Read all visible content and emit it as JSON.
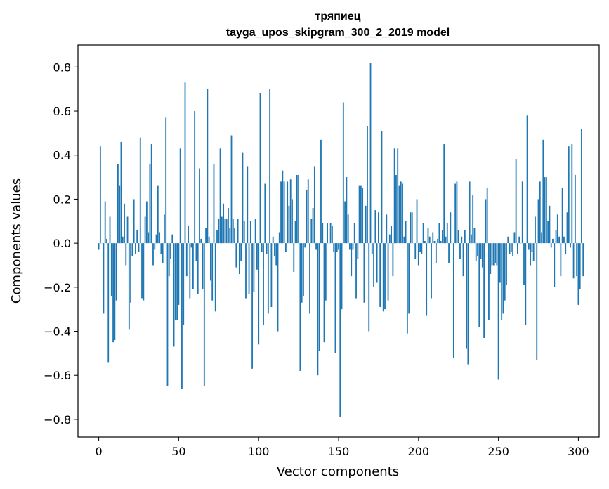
{
  "chart_data": {
    "type": "bar",
    "title": "тряпиец",
    "subtitle": "tayga_upos_skipgram_300_2_2019 model",
    "xlabel": "Vector components",
    "ylabel": "Components values",
    "xlim": [
      -13,
      313
    ],
    "ylim": [
      -0.88,
      0.9
    ],
    "xticks": [
      0,
      50,
      100,
      150,
      200,
      250,
      300
    ],
    "yticks": [
      -0.8,
      -0.6,
      -0.4,
      -0.2,
      0.0,
      0.2,
      0.4,
      0.6,
      0.8
    ],
    "ytick_labels": [
      "−0.8",
      "−0.6",
      "−0.4",
      "−0.2",
      "0.0",
      "0.2",
      "0.4",
      "0.6",
      "0.8"
    ],
    "bar_color": "#1f77b4",
    "grid": false,
    "legend": "none",
    "values": [
      -0.03,
      0.44,
      0.0,
      -0.32,
      0.19,
      0.02,
      -0.54,
      0.12,
      -0.24,
      -0.45,
      -0.44,
      -0.26,
      0.36,
      0.26,
      0.46,
      0.03,
      0.18,
      -0.1,
      0.12,
      -0.39,
      -0.27,
      -0.06,
      0.2,
      -0.05,
      0.06,
      -0.04,
      0.48,
      -0.25,
      -0.26,
      0.12,
      0.19,
      0.05,
      0.36,
      0.45,
      -0.1,
      -0.03,
      0.04,
      0.26,
      0.05,
      -0.05,
      -0.09,
      0.13,
      0.57,
      -0.65,
      -0.15,
      -0.07,
      0.04,
      -0.47,
      -0.35,
      -0.35,
      -0.28,
      0.43,
      -0.66,
      -0.37,
      0.73,
      -0.15,
      0.08,
      -0.25,
      -0.02,
      -0.21,
      0.6,
      -0.08,
      -0.23,
      0.34,
      0.02,
      -0.21,
      -0.65,
      0.07,
      0.7,
      0.03,
      -0.17,
      -0.26,
      0.36,
      -0.31,
      0.06,
      0.11,
      0.43,
      0.12,
      0.18,
      0.11,
      0.11,
      0.16,
      0.07,
      0.49,
      0.11,
      0.07,
      -0.11,
      0.11,
      -0.14,
      -0.08,
      0.41,
      0.1,
      -0.25,
      0.35,
      -0.23,
      0.1,
      -0.57,
      -0.22,
      0.11,
      -0.12,
      -0.46,
      0.68,
      -0.04,
      -0.37,
      0.27,
      -0.05,
      -0.32,
      0.7,
      -0.29,
      0.03,
      -0.06,
      -0.1,
      -0.4,
      0.05,
      0.28,
      0.33,
      0.28,
      -0.04,
      0.28,
      0.17,
      0.29,
      0.2,
      -0.13,
      0.1,
      0.31,
      0.31,
      -0.58,
      -0.27,
      -0.24,
      -0.02,
      0.24,
      0.29,
      -0.32,
      0.11,
      0.16,
      0.35,
      -0.03,
      -0.6,
      -0.49,
      0.47,
      0.09,
      -0.45,
      -0.26,
      0.09,
      0.0,
      0.09,
      0.08,
      -0.04,
      -0.5,
      -0.04,
      -0.03,
      -0.79,
      -0.3,
      0.64,
      0.19,
      0.3,
      0.13,
      -0.03,
      -0.15,
      -0.03,
      0.09,
      -0.25,
      -0.07,
      0.26,
      0.26,
      0.25,
      -0.27,
      0.17,
      0.53,
      -0.4,
      0.82,
      -0.05,
      -0.2,
      0.15,
      -0.18,
      0.14,
      -0.29,
      0.51,
      -0.31,
      -0.3,
      0.13,
      -0.26,
      0.04,
      0.08,
      -0.15,
      0.43,
      0.31,
      0.43,
      0.26,
      0.28,
      0.27,
      0.03,
      0.1,
      -0.41,
      -0.32,
      0.14,
      0.14,
      0.0,
      -0.07,
      0.2,
      -0.1,
      -0.04,
      -0.05,
      0.09,
      0.01,
      -0.33,
      0.07,
      0.03,
      -0.25,
      0.05,
      0.01,
      -0.09,
      0.02,
      0.09,
      0.01,
      0.06,
      0.45,
      0.03,
      0.09,
      -0.09,
      0.14,
      0.0,
      -0.52,
      0.27,
      0.28,
      0.06,
      -0.07,
      0.03,
      -0.15,
      0.06,
      -0.48,
      -0.55,
      0.28,
      0.04,
      0.22,
      0.07,
      -0.08,
      -0.06,
      -0.38,
      -0.07,
      -0.11,
      -0.43,
      0.2,
      0.25,
      -0.35,
      -0.14,
      -0.1,
      -0.1,
      -0.09,
      -0.1,
      -0.62,
      -0.18,
      -0.35,
      -0.32,
      -0.26,
      -0.19,
      0.03,
      -0.05,
      -0.04,
      -0.06,
      0.05,
      0.38,
      -0.05,
      0.03,
      0.0,
      0.28,
      -0.19,
      -0.37,
      0.58,
      -0.03,
      -0.1,
      -0.04,
      -0.08,
      0.12,
      -0.53,
      0.2,
      0.28,
      0.05,
      0.47,
      0.3,
      0.3,
      0.1,
      0.17,
      -0.02,
      0.02,
      -0.2,
      0.06,
      0.13,
      0.03,
      -0.15,
      0.25,
      0.03,
      -0.05,
      0.14,
      0.44,
      -0.02,
      0.45,
      -0.16,
      0.31,
      -0.15,
      -0.28,
      -0.21,
      0.52,
      -0.15
    ]
  }
}
